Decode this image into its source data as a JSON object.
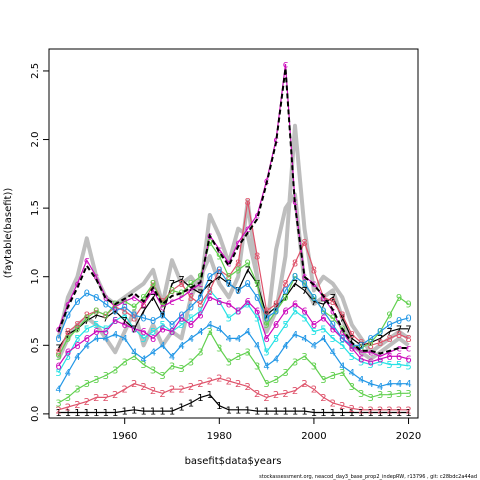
{
  "chart_data": {
    "type": "line",
    "xlabel": "basefit$data$years",
    "ylabel": "(faytable(basefit))",
    "xlim": [
      1944,
      2022
    ],
    "ylim": [
      -0.03,
      2.66
    ],
    "x_ticks": [
      "1960",
      "1980",
      "2000",
      "2020"
    ],
    "y_ticks": [
      "0.0",
      "0.5",
      "1.0",
      "1.5",
      "2.0",
      "2.5"
    ],
    "footer": "stockassessment.org, neacod_day3_base_prop2_indepRW, r13796 , git: c28bdc2a44ad",
    "grey_band": {
      "color": "#bebebe",
      "series": [
        {
          "x": [
            1946,
            1948,
            1950,
            1952,
            1954,
            1956,
            1958,
            1960,
            1962,
            1964,
            1966,
            1968,
            1970,
            1972,
            1974,
            1976,
            1978,
            1980,
            1982,
            1984,
            1986,
            1988,
            1990,
            1992,
            1994,
            1996,
            1998,
            2000,
            2002,
            2004,
            2006,
            2008,
            2010,
            2012,
            2014,
            2016,
            2018,
            2020
          ],
          "y": [
            0.55,
            0.85,
            1.0,
            1.28,
            1.0,
            0.85,
            0.8,
            0.85,
            0.9,
            0.95,
            1.05,
            0.8,
            1.12,
            0.95,
            1.0,
            0.9,
            1.45,
            1.3,
            1.1,
            1.35,
            1.3,
            1.0,
            0.6,
            0.75,
            1.15,
            2.1,
            1.35,
            0.9,
            1.0,
            0.95,
            0.85,
            0.65,
            0.55,
            0.45,
            0.5,
            0.55,
            0.6,
            0.55
          ]
        },
        {
          "x": [
            1946,
            1948,
            1950,
            1952,
            1954,
            1956,
            1958,
            1960,
            1962,
            1964,
            1966,
            1968,
            1970,
            1972,
            1974,
            1976,
            1978,
            1980,
            1982,
            1984,
            1986,
            1988,
            1990,
            1992,
            1994,
            1996,
            1998,
            2000,
            2002,
            2004,
            2006,
            2008,
            2010,
            2012,
            2014,
            2016,
            2018,
            2020
          ],
          "y": [
            0.4,
            0.55,
            0.65,
            0.7,
            0.65,
            0.55,
            0.45,
            0.6,
            0.75,
            0.5,
            0.65,
            0.5,
            0.6,
            0.55,
            0.85,
            1.0,
            1.15,
            0.95,
            0.85,
            1.0,
            1.55,
            1.0,
            0.6,
            1.2,
            1.5,
            1.6,
            0.95,
            0.8,
            0.85,
            0.9,
            0.7,
            0.5,
            0.45,
            0.4,
            0.45,
            0.5,
            0.55,
            0.5
          ]
        }
      ]
    },
    "series": [
      {
        "label": "1",
        "color": "#000000",
        "x": [
          1946,
          1948,
          1950,
          1952,
          1954,
          1956,
          1958,
          1960,
          1962,
          1964,
          1966,
          1968,
          1970,
          1972,
          1974,
          1976,
          1978,
          1980,
          1982,
          1984,
          1986,
          1988,
          1990,
          1992,
          1994,
          1996,
          1998,
          2000,
          2002,
          2004,
          2006,
          2008,
          2010,
          2012,
          2014,
          2016,
          2018,
          2020
        ],
        "y": [
          0.01,
          0.01,
          0.01,
          0.01,
          0.01,
          0.01,
          0.01,
          0.02,
          0.03,
          0.02,
          0.02,
          0.02,
          0.02,
          0.05,
          0.08,
          0.12,
          0.14,
          0.06,
          0.03,
          0.03,
          0.03,
          0.02,
          0.02,
          0.02,
          0.02,
          0.02,
          0.02,
          0.01,
          0.01,
          0.01,
          0.01,
          0.01,
          0.01,
          0.01,
          0.01,
          0.01,
          0.01,
          0.01
        ]
      },
      {
        "label": "2",
        "color": "#df536b",
        "x": [
          1946,
          1948,
          1950,
          1952,
          1954,
          1956,
          1958,
          1960,
          1962,
          1964,
          1966,
          1968,
          1970,
          1972,
          1974,
          1976,
          1978,
          1980,
          1982,
          1984,
          1986,
          1988,
          1990,
          1992,
          1994,
          1996,
          1998,
          2000,
          2002,
          2004,
          2006,
          2008,
          2010,
          2012,
          2014,
          2016,
          2018,
          2020
        ],
        "y": [
          0.03,
          0.05,
          0.07,
          0.09,
          0.12,
          0.12,
          0.14,
          0.18,
          0.22,
          0.2,
          0.17,
          0.15,
          0.18,
          0.18,
          0.2,
          0.22,
          0.24,
          0.26,
          0.24,
          0.22,
          0.2,
          0.15,
          0.12,
          0.14,
          0.15,
          0.17,
          0.22,
          0.18,
          0.12,
          0.08,
          0.06,
          0.04,
          0.03,
          0.03,
          0.03,
          0.03,
          0.03,
          0.03
        ]
      },
      {
        "label": "3",
        "color": "#61d04f",
        "x": [
          1946,
          1948,
          1950,
          1952,
          1954,
          1956,
          1958,
          1960,
          1962,
          1964,
          1966,
          1968,
          1970,
          1972,
          1974,
          1976,
          1978,
          1980,
          1982,
          1984,
          1986,
          1988,
          1990,
          1992,
          1994,
          1996,
          1998,
          2000,
          2002,
          2004,
          2006,
          2008,
          2010,
          2012,
          2014,
          2016,
          2018,
          2020
        ],
        "y": [
          0.08,
          0.12,
          0.18,
          0.22,
          0.25,
          0.28,
          0.32,
          0.38,
          0.42,
          0.36,
          0.32,
          0.28,
          0.35,
          0.33,
          0.38,
          0.45,
          0.6,
          0.48,
          0.38,
          0.42,
          0.45,
          0.35,
          0.22,
          0.25,
          0.3,
          0.38,
          0.42,
          0.35,
          0.25,
          0.28,
          0.3,
          0.2,
          0.15,
          0.12,
          0.14,
          0.14,
          0.15,
          0.15
        ]
      },
      {
        "label": "4",
        "color": "#2297e6",
        "x": [
          1946,
          1948,
          1950,
          1952,
          1954,
          1956,
          1958,
          1960,
          1962,
          1964,
          1966,
          1968,
          1970,
          1972,
          1974,
          1976,
          1978,
          1980,
          1982,
          1984,
          1986,
          1988,
          1990,
          1992,
          1994,
          1996,
          1998,
          2000,
          2002,
          2004,
          2006,
          2008,
          2010,
          2012,
          2014,
          2016,
          2018,
          2020
        ],
        "y": [
          0.18,
          0.3,
          0.42,
          0.5,
          0.55,
          0.55,
          0.58,
          0.55,
          0.45,
          0.4,
          0.45,
          0.5,
          0.42,
          0.5,
          0.55,
          0.6,
          0.65,
          0.62,
          0.55,
          0.55,
          0.6,
          0.5,
          0.35,
          0.4,
          0.5,
          0.58,
          0.55,
          0.5,
          0.55,
          0.45,
          0.35,
          0.3,
          0.25,
          0.22,
          0.2,
          0.22,
          0.22,
          0.22
        ]
      },
      {
        "label": "5",
        "color": "#28e2e5",
        "x": [
          1946,
          1948,
          1950,
          1952,
          1954,
          1956,
          1958,
          1960,
          1962,
          1964,
          1966,
          1968,
          1970,
          1972,
          1974,
          1976,
          1978,
          1980,
          1982,
          1984,
          1986,
          1988,
          1990,
          1992,
          1994,
          1996,
          1998,
          2000,
          2002,
          2004,
          2006,
          2008,
          2010,
          2012,
          2014,
          2016,
          2018,
          2020
        ],
        "y": [
          0.3,
          0.42,
          0.55,
          0.62,
          0.65,
          0.62,
          0.68,
          0.72,
          0.62,
          0.55,
          0.6,
          0.65,
          0.6,
          0.65,
          0.7,
          0.75,
          0.9,
          0.82,
          0.7,
          0.75,
          0.8,
          0.7,
          0.45,
          0.55,
          0.65,
          0.75,
          0.7,
          0.6,
          0.62,
          0.55,
          0.5,
          0.42,
          0.38,
          0.36,
          0.38,
          0.36,
          0.36,
          0.35
        ]
      },
      {
        "label": "6",
        "color": "#cd0bbc",
        "x": [
          1946,
          1948,
          1950,
          1952,
          1954,
          1956,
          1958,
          1960,
          1962,
          1964,
          1966,
          1968,
          1970,
          1972,
          1974,
          1976,
          1978,
          1980,
          1982,
          1984,
          1986,
          1988,
          1990,
          1992,
          1994,
          1996,
          1998,
          2000,
          2002,
          2004,
          2006,
          2008,
          2010,
          2012,
          2014,
          2016,
          2018,
          2020
        ],
        "y": [
          0.35,
          0.45,
          0.5,
          0.55,
          0.6,
          0.6,
          0.68,
          0.65,
          0.62,
          0.6,
          0.55,
          0.62,
          0.6,
          0.7,
          0.65,
          0.72,
          0.85,
          0.82,
          0.8,
          0.75,
          0.82,
          0.75,
          0.55,
          0.65,
          0.75,
          0.8,
          0.75,
          0.65,
          0.7,
          0.62,
          0.55,
          0.48,
          0.4,
          0.38,
          0.4,
          0.42,
          0.42,
          0.4
        ]
      },
      {
        "label": "7",
        "color": "#000000",
        "x": [
          1946,
          1948,
          1950,
          1952,
          1954,
          1956,
          1958,
          1960,
          1962,
          1964,
          1966,
          1968,
          1970,
          1972,
          1974,
          1976,
          1978,
          1980,
          1982,
          1984,
          1986,
          1988,
          1990,
          1992,
          1994,
          1996,
          1998,
          2000,
          2002,
          2004,
          2006,
          2008,
          2010,
          2012,
          2014,
          2016,
          2018,
          2020
        ],
        "y": [
          0.48,
          0.58,
          0.62,
          0.68,
          0.72,
          0.7,
          0.75,
          0.68,
          0.62,
          0.75,
          0.85,
          0.72,
          0.95,
          0.98,
          0.92,
          0.88,
          0.95,
          1.0,
          0.95,
          0.9,
          1.05,
          0.95,
          0.72,
          0.78,
          0.85,
          0.95,
          0.9,
          0.82,
          0.8,
          0.85,
          0.7,
          0.55,
          0.5,
          0.52,
          0.55,
          0.6,
          0.62,
          0.62
        ]
      },
      {
        "label": "8",
        "color": "#df536b",
        "x": [
          1946,
          1948,
          1950,
          1952,
          1954,
          1956,
          1958,
          1960,
          1962,
          1964,
          1966,
          1968,
          1970,
          1972,
          1974,
          1976,
          1978,
          1980,
          1982,
          1984,
          1986,
          1988,
          1990,
          1992,
          1994,
          1996,
          1998,
          2000,
          2002,
          2004,
          2006,
          2008,
          2010,
          2012,
          2014,
          2016,
          2018,
          2020
        ],
        "y": [
          0.45,
          0.6,
          0.65,
          0.72,
          0.75,
          0.72,
          0.78,
          0.75,
          0.7,
          0.8,
          0.95,
          0.82,
          0.9,
          0.95,
          0.85,
          0.8,
          0.9,
          1.05,
          1.0,
          1.1,
          1.55,
          1.15,
          0.75,
          0.8,
          0.95,
          1.1,
          1.25,
          1.05,
          0.85,
          0.82,
          0.72,
          0.58,
          0.52,
          0.5,
          0.52,
          0.55,
          0.58,
          0.55
        ]
      },
      {
        "label": "9",
        "color": "#61d04f",
        "x": [
          1946,
          1948,
          1950,
          1952,
          1954,
          1956,
          1958,
          1960,
          1962,
          1964,
          1966,
          1968,
          1970,
          1972,
          1974,
          1976,
          1978,
          1980,
          1982,
          1984,
          1986,
          1988,
          1990,
          1992,
          1994,
          1996,
          1998,
          2000,
          2002,
          2004,
          2006,
          2008,
          2010,
          2012,
          2014,
          2016,
          2018,
          2020
        ],
        "y": [
          0.42,
          0.55,
          0.62,
          0.7,
          0.75,
          0.72,
          0.8,
          0.82,
          0.78,
          0.85,
          0.95,
          0.8,
          0.9,
          0.88,
          0.95,
          1.0,
          1.25,
          1.15,
          1.0,
          1.05,
          1.1,
          0.95,
          0.65,
          0.75,
          0.85,
          1.0,
          0.95,
          0.85,
          0.75,
          0.7,
          0.62,
          0.5,
          0.48,
          0.52,
          0.6,
          0.72,
          0.85,
          0.8
        ]
      },
      {
        "label": "0",
        "color": "#2297e6",
        "x": [
          1946,
          1948,
          1950,
          1952,
          1954,
          1956,
          1958,
          1960,
          1962,
          1964,
          1966,
          1968,
          1970,
          1972,
          1974,
          1976,
          1978,
          1980,
          1982,
          1984,
          1986,
          1988,
          1990,
          1992,
          1994,
          1996,
          1998,
          2000,
          2002,
          2004,
          2006,
          2008,
          2010,
          2012,
          2014,
          2016,
          2018,
          2020
        ],
        "y": [
          0.55,
          0.72,
          0.82,
          0.88,
          0.85,
          0.8,
          0.75,
          0.78,
          0.72,
          0.7,
          0.68,
          0.72,
          0.65,
          0.72,
          0.78,
          0.85,
          1.0,
          1.05,
          0.95,
          0.9,
          0.95,
          0.85,
          0.7,
          0.75,
          0.9,
          1.0,
          0.95,
          0.85,
          0.75,
          0.65,
          0.55,
          0.5,
          0.5,
          0.55,
          0.6,
          0.65,
          0.68,
          0.7
        ]
      },
      {
        "label": "c",
        "color": "#cd0bbc",
        "x": [
          1946,
          1948,
          1950,
          1952,
          1954,
          1956,
          1958,
          1960,
          1962,
          1964,
          1966,
          1968,
          1970,
          1972,
          1974,
          1976,
          1978,
          1980,
          1982,
          1984,
          1986,
          1988,
          1990,
          1992,
          1994,
          1996,
          1998,
          2000,
          2002,
          2004,
          2006,
          2008,
          2010,
          2012,
          2014,
          2016,
          2018,
          2020
        ],
        "y": [
          0.62,
          0.8,
          0.95,
          1.12,
          1.0,
          0.85,
          0.78,
          0.82,
          0.85,
          0.8,
          0.9,
          0.78,
          0.82,
          0.85,
          0.9,
          0.95,
          1.3,
          1.2,
          1.1,
          1.25,
          1.35,
          1.45,
          1.7,
          2.0,
          2.55,
          1.55,
          1.0,
          0.95,
          0.85,
          0.75,
          0.6,
          0.5,
          0.45,
          0.45,
          0.42,
          0.45,
          0.48,
          0.48
        ]
      }
    ],
    "mean_line": {
      "color": "#000000",
      "x": [
        1946,
        1948,
        1950,
        1952,
        1954,
        1956,
        1958,
        1960,
        1962,
        1964,
        1966,
        1968,
        1970,
        1972,
        1974,
        1976,
        1978,
        1980,
        1982,
        1984,
        1986,
        1988,
        1990,
        1992,
        1994,
        1996,
        1998,
        2000,
        2002,
        2004,
        2006,
        2008,
        2010,
        2012,
        2014,
        2016,
        2018,
        2020
      ],
      "y": [
        0.6,
        0.78,
        0.92,
        1.08,
        0.98,
        0.84,
        0.8,
        0.84,
        0.88,
        0.82,
        0.92,
        0.8,
        0.86,
        0.88,
        0.92,
        0.96,
        1.3,
        1.18,
        1.08,
        1.22,
        1.32,
        1.42,
        1.68,
        1.98,
        2.52,
        1.52,
        1.0,
        0.94,
        0.86,
        0.76,
        0.62,
        0.52,
        0.46,
        0.46,
        0.44,
        0.46,
        0.48,
        0.48
      ]
    }
  }
}
